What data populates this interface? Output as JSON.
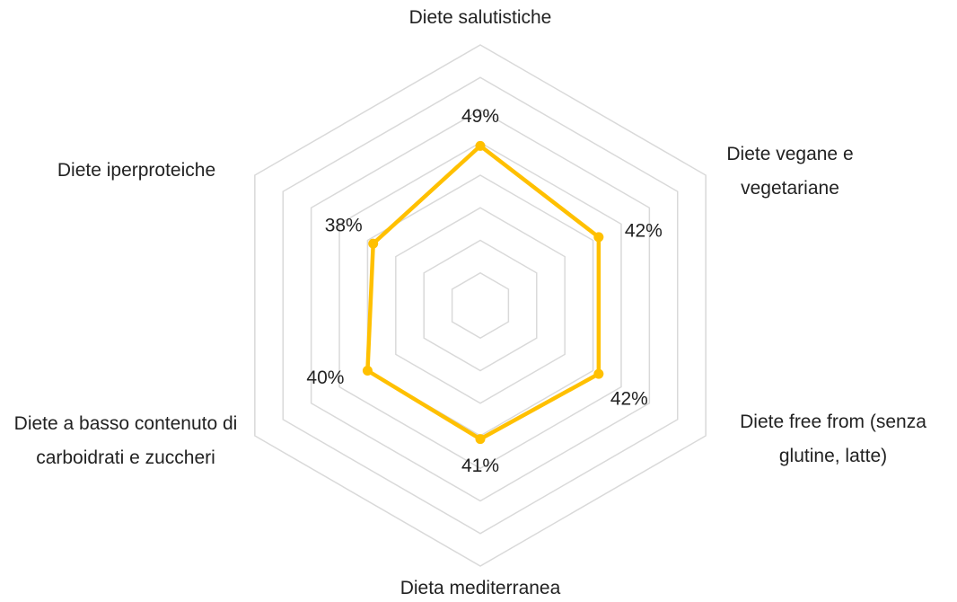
{
  "chart_data": {
    "type": "radar",
    "categories": [
      "Diete salutistiche",
      "Diete vegane e vegetariane",
      "Diete free from (senza glutine, latte)",
      "Dieta mediterranea",
      "Diete a basso contenuto di carboidrati e zuccheri",
      "Diete iperproteiche"
    ],
    "values": [
      49,
      42,
      42,
      41,
      40,
      38
    ],
    "value_labels": [
      "49%",
      "42%",
      "42%",
      "41%",
      "40%",
      "38%"
    ],
    "color": "#FFC000",
    "rlim": [
      0,
      80
    ],
    "rticks": [
      0,
      10,
      20,
      30,
      40,
      50,
      60,
      70,
      80
    ],
    "grid": true
  }
}
